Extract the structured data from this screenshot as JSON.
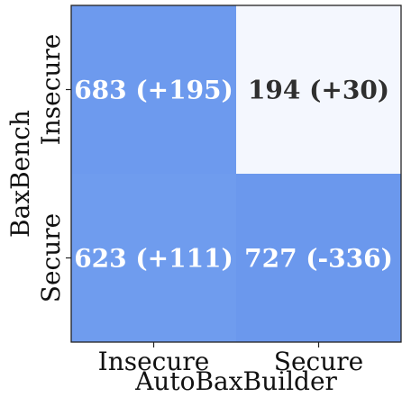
{
  "chart_data": {
    "type": "heatmap",
    "xlabel": "AutoBaxBuilder",
    "ylabel": "BaxBench",
    "x_categories": [
      "Insecure",
      "Secure"
    ],
    "y_categories": [
      "Insecure",
      "Secure"
    ],
    "cells": [
      {
        "row": 0,
        "col": 0,
        "value": 683,
        "delta": 195,
        "label": "683 (+195)",
        "color": "#6d9aee",
        "text_color": "#ffffff"
      },
      {
        "row": 0,
        "col": 1,
        "value": 194,
        "delta": 30,
        "label": "194 (+30)",
        "color": "#f4f7fe",
        "text_color": "#2f2f2f"
      },
      {
        "row": 1,
        "col": 0,
        "value": 623,
        "delta": 111,
        "label": "623 (+111)",
        "color": "#6f9cee",
        "text_color": "#ffffff"
      },
      {
        "row": 1,
        "col": 1,
        "value": 727,
        "delta": -336,
        "label": "727 (-336)",
        "color": "#6b98ed",
        "text_color": "#ffffff"
      }
    ],
    "grid": false,
    "legend": "none"
  }
}
